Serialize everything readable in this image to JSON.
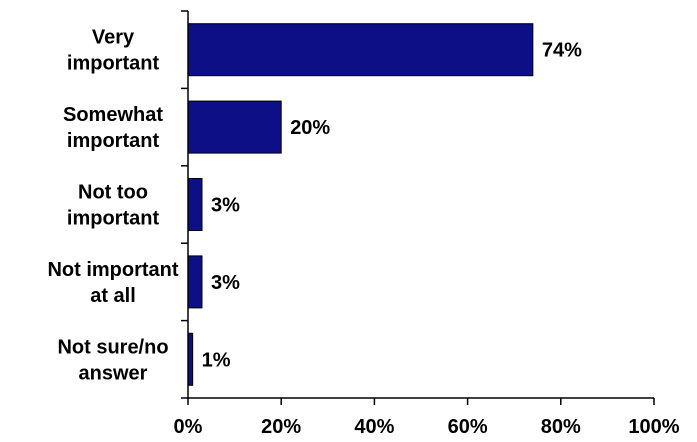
{
  "chart_data": {
    "type": "bar",
    "orientation": "horizontal",
    "categories": [
      [
        "Very",
        "important"
      ],
      [
        "Somewhat",
        "important"
      ],
      [
        "Not too",
        "important"
      ],
      [
        "Not important",
        "at all"
      ],
      [
        "Not sure/no",
        "answer"
      ]
    ],
    "values": [
      74,
      20,
      3,
      3,
      1
    ],
    "data_labels": [
      "74%",
      "20%",
      "3%",
      "3%",
      "1%"
    ],
    "xlim": [
      0,
      100
    ],
    "x_ticks": [
      0,
      20,
      40,
      60,
      80,
      100
    ],
    "x_tick_labels": [
      "0%",
      "20%",
      "40%",
      "60%",
      "80%",
      "100%"
    ],
    "bar_color": "#0c0f86",
    "bar_stroke": "#000000",
    "grid": false,
    "legend": "none"
  }
}
